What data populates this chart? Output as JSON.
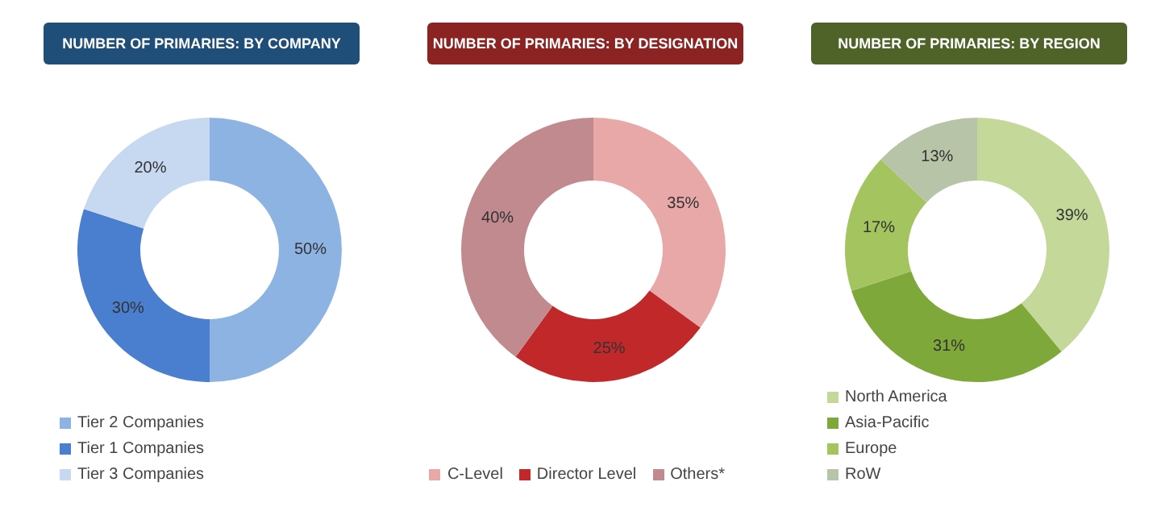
{
  "chart_data": [
    {
      "type": "donut",
      "title": "NUMBER OF PRIMARIES: BY COMPANY",
      "categories": [
        "Tier 2 Companies",
        "Tier 1 Companies",
        "Tier 3 Companies"
      ],
      "values": [
        50,
        30,
        20
      ],
      "value_labels": [
        "50%",
        "30%",
        "20%"
      ],
      "colors": [
        "#8db3e2",
        "#4a7fd0",
        "#c6d9f1"
      ],
      "legend": "bottom"
    },
    {
      "type": "donut",
      "title": "NUMBER OF PRIMARIES: BY DESIGNATION",
      "categories": [
        "C-Level",
        "Director Level",
        "Others*"
      ],
      "values": [
        35,
        25,
        40
      ],
      "value_labels": [
        "35%",
        "25%",
        "40%"
      ],
      "colors": [
        "#e8a8a8",
        "#c0282a",
        "#c08a8e"
      ],
      "legend": "bottom"
    },
    {
      "type": "donut",
      "title": "NUMBER OF PRIMARIES: BY REGION",
      "categories": [
        "North America",
        "Asia-Pacific",
        "Europe",
        "RoW"
      ],
      "values": [
        39,
        31,
        17,
        13
      ],
      "value_labels": [
        "39%",
        "31%",
        "17%",
        "13%"
      ],
      "colors": [
        "#c4d89a",
        "#7fa83a",
        "#a3c45e",
        "#b8c4a8"
      ],
      "legend": "bottom"
    }
  ]
}
